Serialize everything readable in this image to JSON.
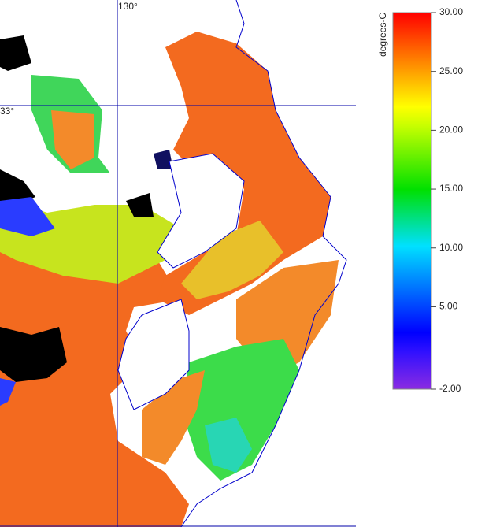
{
  "map": {
    "grid": {
      "longitude_label": "130°",
      "latitude_label": "33°"
    },
    "colorbar": {
      "label": "degrees-C",
      "range": [
        -2,
        30
      ],
      "ticks": [
        {
          "value": 30,
          "label": "30.00"
        },
        {
          "value": 25,
          "label": "25.00"
        },
        {
          "value": 20,
          "label": "20.00"
        },
        {
          "value": 15,
          "label": "15.00"
        },
        {
          "value": 10,
          "label": "10.00"
        },
        {
          "value": 5,
          "label": "5.00"
        },
        {
          "value": -2,
          "label": "-2.00"
        }
      ]
    }
  }
}
